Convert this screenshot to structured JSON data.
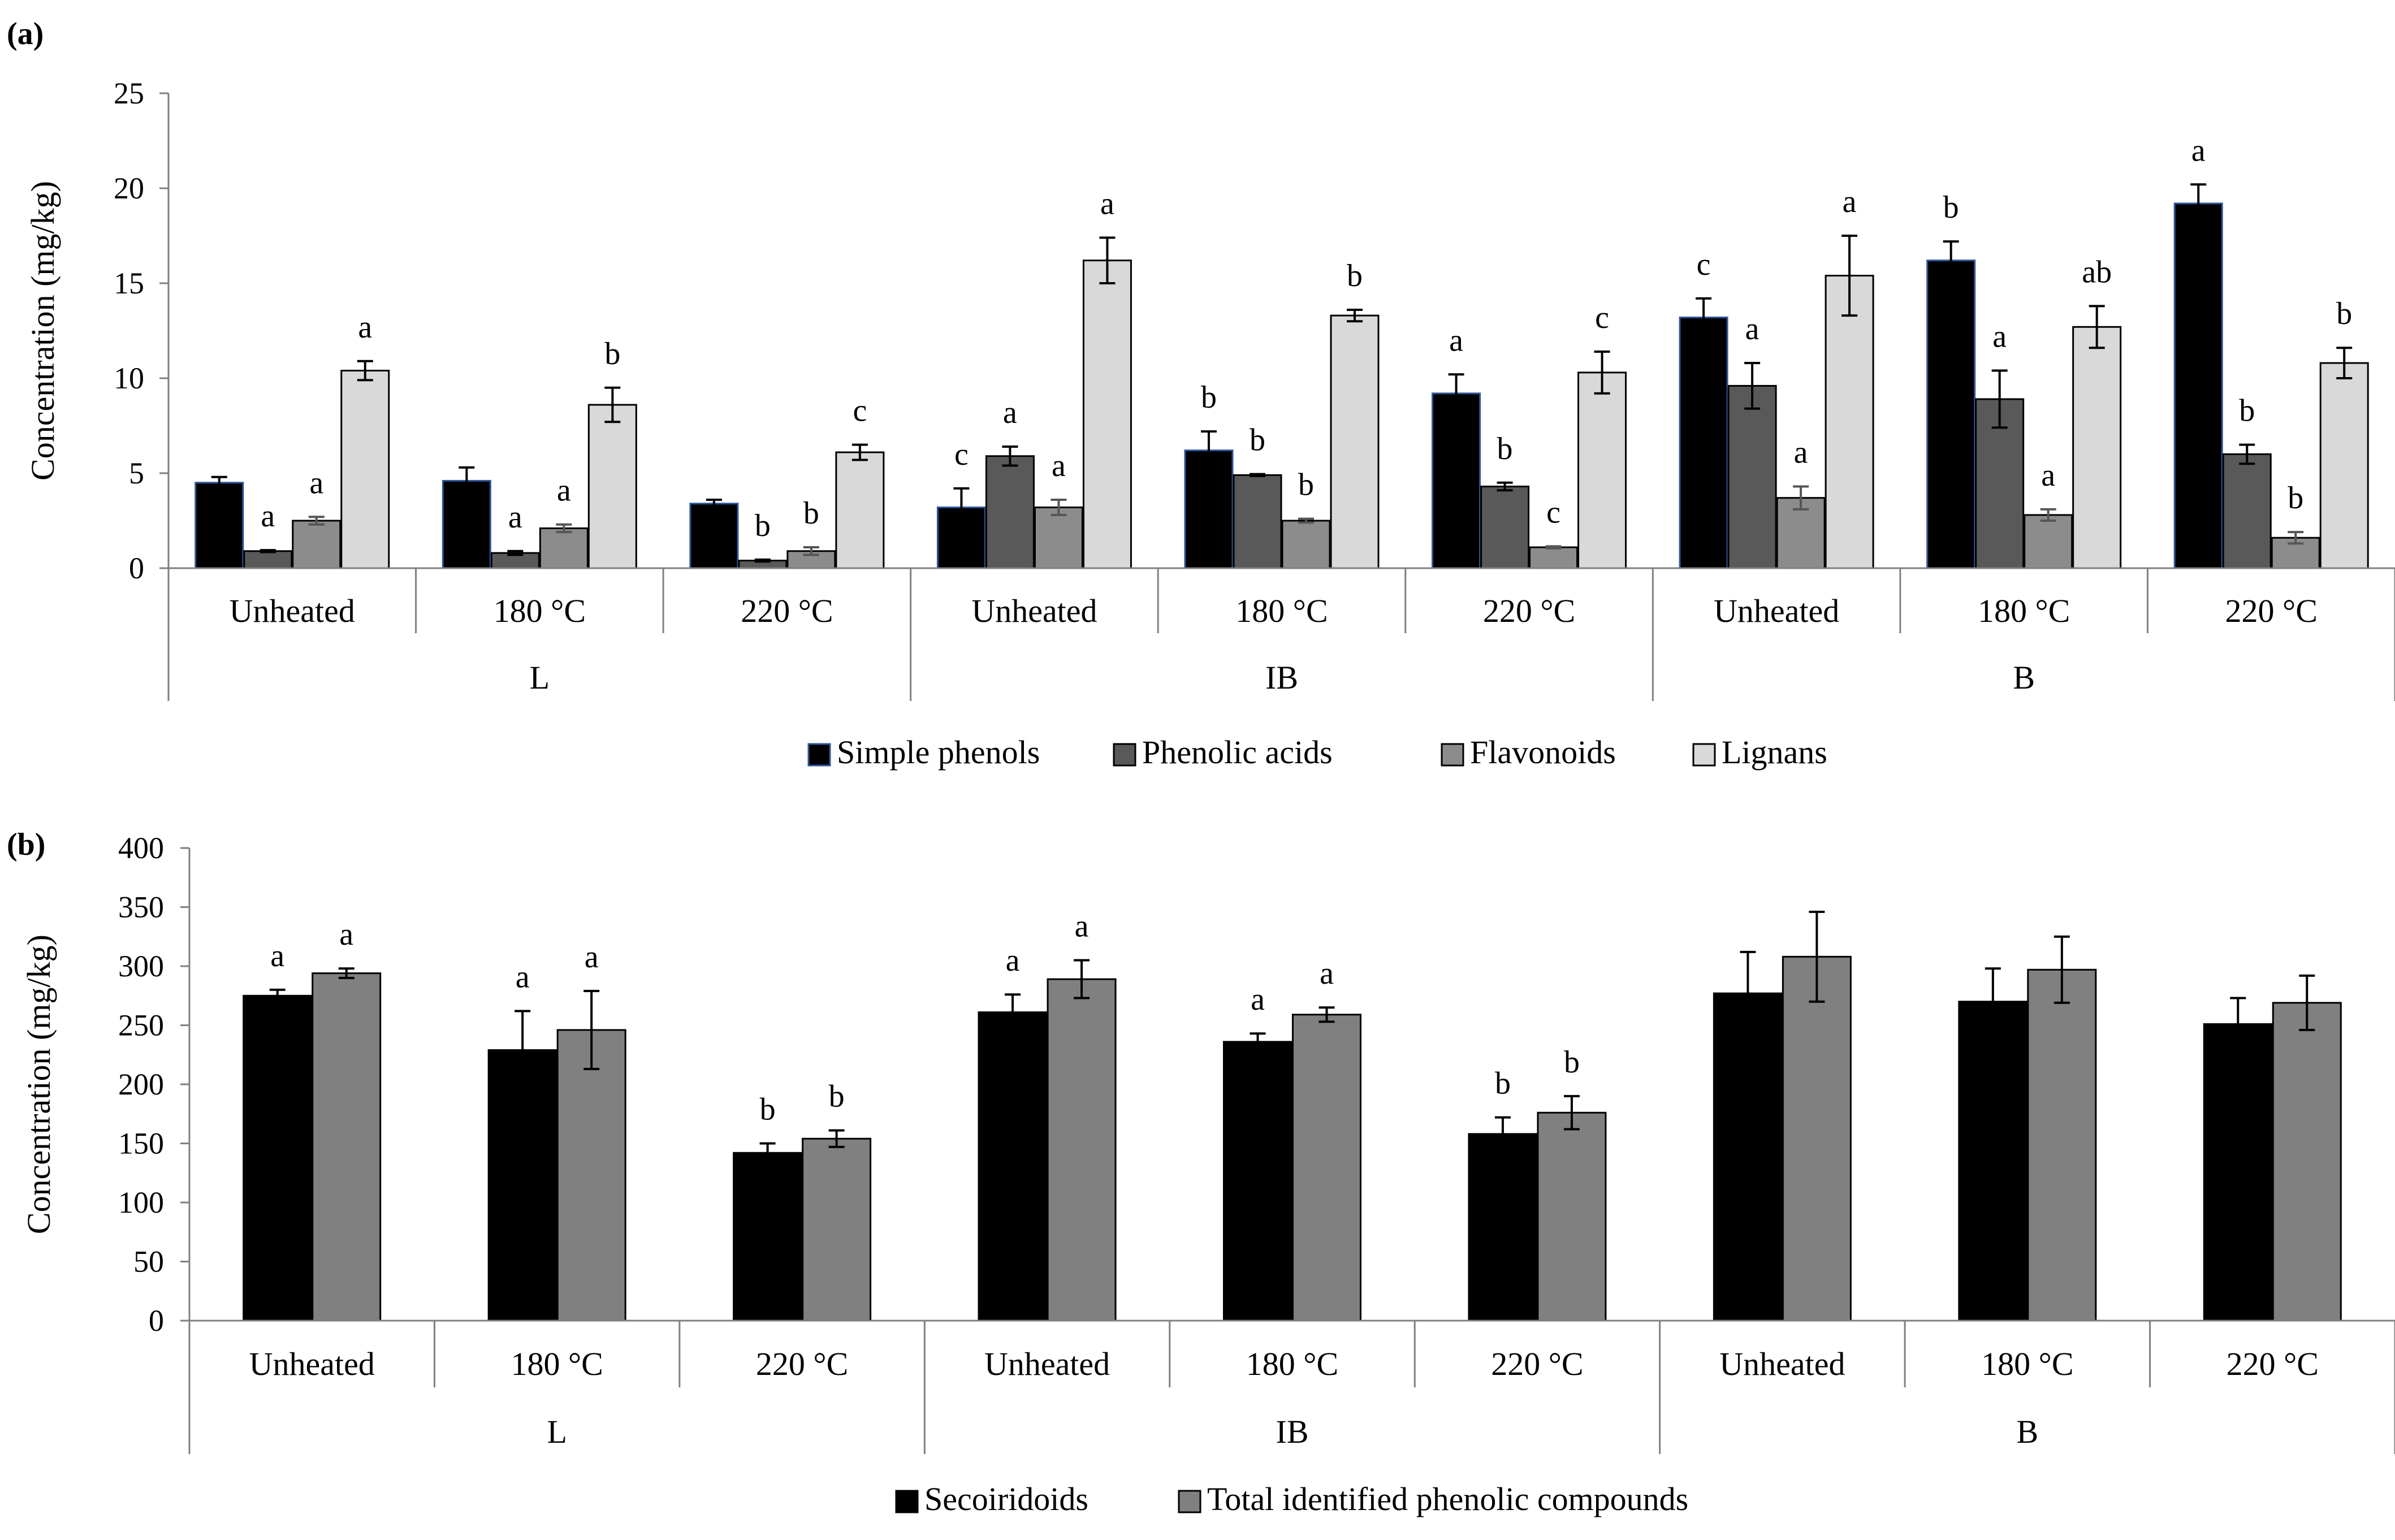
{
  "chart_data": [
    {
      "panel_label": "(a)",
      "type": "bar",
      "ylabel": "Concentration (mg/kg)",
      "ylim": [
        0,
        25
      ],
      "yticks": [
        0,
        5,
        10,
        15,
        20,
        25
      ],
      "groups": [
        "L",
        "IB",
        "B"
      ],
      "subcategories": [
        "Unheated",
        "180 °C",
        "220 °C"
      ],
      "categories": [
        "Unheated",
        "180 °C",
        "220 °C",
        "Unheated",
        "180 °C",
        "220 °C",
        "Unheated",
        "180 °C",
        "220 °C"
      ],
      "series": [
        {
          "name": "Simple phenols",
          "color": "#000000",
          "values": [
            4.5,
            4.6,
            3.4,
            3.2,
            6.2,
            9.2,
            13.2,
            16.2,
            19.2
          ],
          "errors": [
            0.3,
            0.7,
            0.2,
            1.0,
            1.0,
            1.0,
            1.0,
            1.0,
            1.0
          ],
          "letters": [
            "",
            "",
            "",
            "c",
            "b",
            "a",
            "c",
            "b",
            "a"
          ]
        },
        {
          "name": "Phenolic acids",
          "color": "#595959",
          "values": [
            0.9,
            0.8,
            0.4,
            5.9,
            4.9,
            4.3,
            9.6,
            8.9,
            6.0
          ],
          "errors": [
            0.05,
            0.1,
            0.05,
            0.5,
            0.05,
            0.2,
            1.2,
            1.5,
            0.5
          ],
          "letters": [
            "a",
            "a",
            "b",
            "a",
            "b",
            "b",
            "a",
            "a",
            "b"
          ]
        },
        {
          "name": "Flavonoids",
          "color": "#8c8c8c",
          "values": [
            2.5,
            2.1,
            0.9,
            3.2,
            2.5,
            1.1,
            3.7,
            2.8,
            1.6
          ],
          "errors": [
            0.2,
            0.2,
            0.2,
            0.4,
            0.1,
            0.05,
            0.6,
            0.3,
            0.3
          ],
          "letters": [
            "a",
            "a",
            "b",
            "a",
            "b",
            "c",
            "a",
            "a",
            "b"
          ]
        },
        {
          "name": "Lignans",
          "color": "#d9d9d9",
          "values": [
            10.4,
            8.6,
            6.1,
            16.2,
            13.3,
            10.3,
            15.4,
            12.7,
            10.8
          ],
          "errors": [
            0.5,
            0.9,
            0.4,
            1.2,
            0.3,
            1.1,
            2.1,
            1.1,
            0.8
          ],
          "letters": [
            "a",
            "b",
            "c",
            "a",
            "b",
            "c",
            "a",
            "ab",
            "b"
          ]
        }
      ]
    },
    {
      "panel_label": "(b)",
      "type": "bar",
      "ylabel": "Concentration (mg/kg)",
      "ylim": [
        0,
        400
      ],
      "yticks": [
        0,
        50,
        100,
        150,
        200,
        250,
        300,
        350,
        400
      ],
      "groups": [
        "L",
        "IB",
        "B"
      ],
      "subcategories": [
        "Unheated",
        "180 °C",
        "220 °C"
      ],
      "categories": [
        "Unheated",
        "180 °C",
        "220 °C",
        "Unheated",
        "180 °C",
        "220 °C",
        "Unheated",
        "180 °C",
        "220 °C"
      ],
      "series": [
        {
          "name": "Secoiridoids",
          "color": "#000000",
          "values": [
            275,
            229,
            142,
            261,
            236,
            158,
            277,
            270,
            251
          ],
          "errors": [
            5,
            33,
            8,
            15,
            7,
            14,
            35,
            28,
            22
          ],
          "letters": [
            "a",
            "a",
            "b",
            "a",
            "a",
            "b",
            "",
            "",
            ""
          ]
        },
        {
          "name": "Total identified phenolic compounds",
          "color": "#808080",
          "values": [
            294,
            246,
            154,
            289,
            259,
            176,
            308,
            297,
            269
          ],
          "errors": [
            4,
            33,
            7,
            16,
            6,
            14,
            38,
            28,
            23
          ],
          "letters": [
            "a",
            "a",
            "b",
            "a",
            "a",
            "b",
            "",
            "",
            ""
          ]
        }
      ]
    }
  ]
}
